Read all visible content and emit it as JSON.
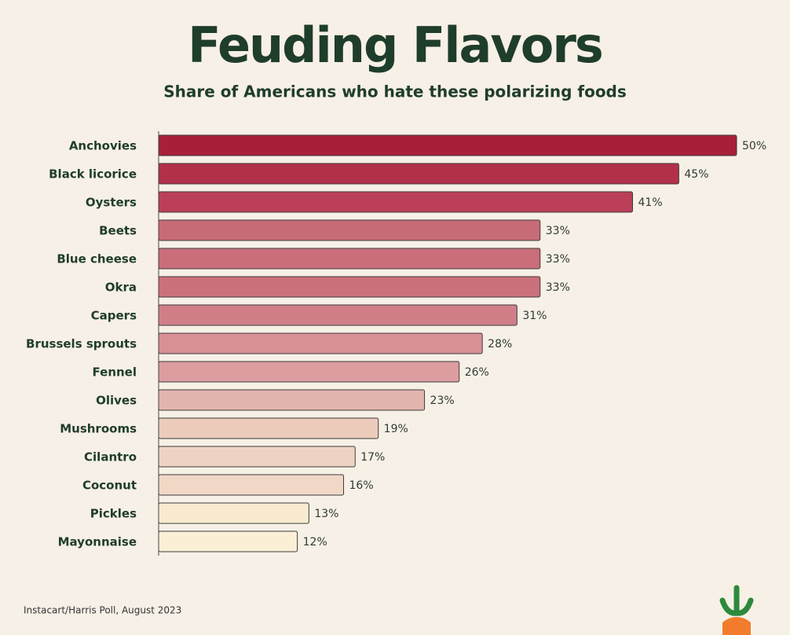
{
  "chart_data": {
    "type": "hbar",
    "title": "Feuding Flavors",
    "subtitle": "Share of Americans who hate these polarizing foods",
    "categories": [
      "Anchovies",
      "Black licorice",
      "Oysters",
      "Beets",
      "Blue cheese",
      "Okra",
      "Capers",
      "Brussels sprouts",
      "Fennel",
      "Olives",
      "Mushrooms",
      "Cilantro",
      "Coconut",
      "Pickles",
      "Mayonnaise"
    ],
    "values": [
      50,
      45,
      41,
      33,
      33,
      33,
      31,
      28,
      26,
      23,
      19,
      17,
      16,
      13,
      12
    ],
    "value_labels": [
      "50%",
      "45%",
      "41%",
      "33%",
      "33%",
      "33%",
      "31%",
      "28%",
      "26%",
      "23%",
      "19%",
      "17%",
      "16%",
      "13%",
      "12%"
    ],
    "colors": [
      "#a81f3a",
      "#b2304a",
      "#bb3f58",
      "#c86b78",
      "#c96e7a",
      "#ca717c",
      "#d07f88",
      "#d88f96",
      "#dc9da1",
      "#e3b4ae",
      "#eccbbb",
      "#efd3c2",
      "#f1d8c6",
      "#f9ebcf",
      "#fbf0d6"
    ],
    "xlim": [
      0,
      50
    ],
    "source": "Instacart/Harris Poll, August 2023"
  }
}
